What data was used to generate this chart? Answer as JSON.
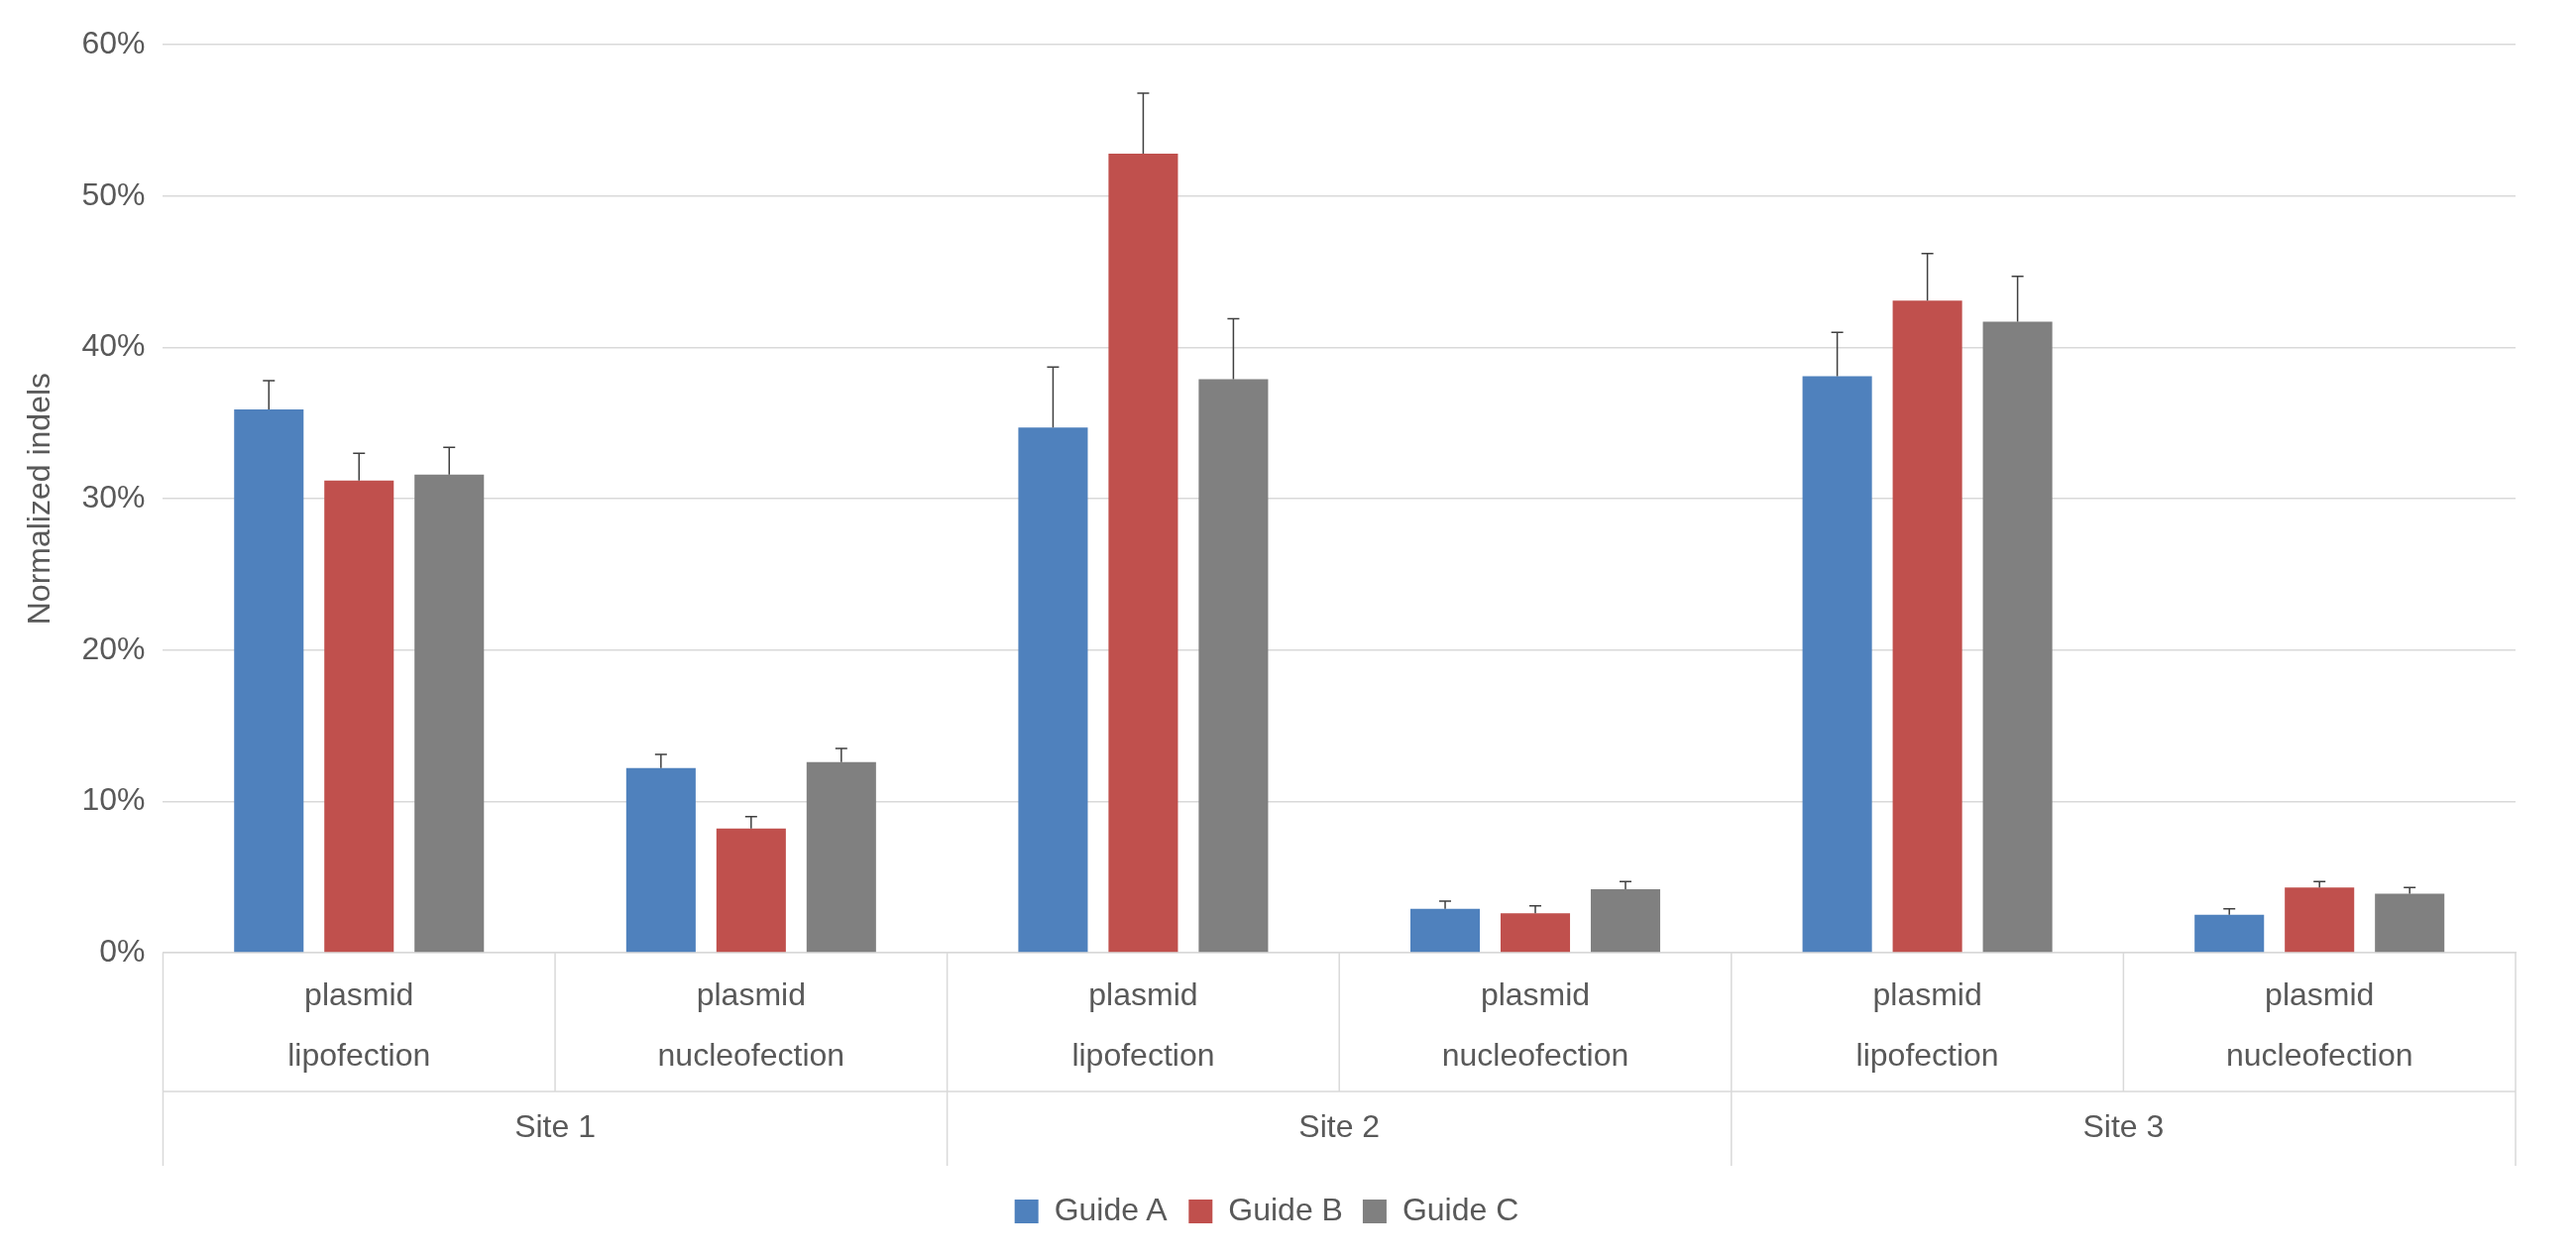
{
  "chart_data": {
    "type": "bar",
    "ylabel": "Normalized indels",
    "categories": [
      "plasmid\nlipofection",
      "plasmid\nnucleofection",
      "plasmid\nlipofection",
      "plasmid\nnucleofection",
      "plasmid\nlipofection",
      "plasmid\nnucleofection"
    ],
    "annotations": [
      "Site 1",
      "Site 2",
      "Site 3"
    ],
    "series": [
      {
        "name": "Guide A",
        "color": "#4f81bd",
        "values": [
          35.9,
          12.2,
          34.7,
          2.9,
          38.1,
          2.5
        ],
        "errors": [
          [
            35.9,
            37.8
          ],
          [
            12.2,
            13.1
          ],
          [
            34.7,
            38.7
          ],
          [
            2.9,
            3.4
          ],
          [
            38.1,
            41.0
          ],
          [
            2.5,
            2.9
          ]
        ]
      },
      {
        "name": "Guide B",
        "color": "#c0504d",
        "values": [
          31.2,
          8.2,
          52.8,
          2.6,
          43.1,
          4.3
        ],
        "errors": [
          [
            31.2,
            33.0
          ],
          [
            8.2,
            9.0
          ],
          [
            52.8,
            56.8
          ],
          [
            2.6,
            3.1
          ],
          [
            43.1,
            46.2
          ],
          [
            4.3,
            4.7
          ]
        ]
      },
      {
        "name": "Guide C",
        "color": "#808080",
        "values": [
          31.6,
          12.6,
          37.9,
          4.2,
          41.7,
          3.9
        ],
        "errors": [
          [
            31.6,
            33.4
          ],
          [
            12.6,
            13.5
          ],
          [
            37.9,
            41.9
          ],
          [
            4.2,
            4.7
          ],
          [
            41.7,
            44.7
          ],
          [
            3.9,
            4.3
          ]
        ]
      }
    ],
    "ylim": [
      0,
      60
    ],
    "yticks": [
      {
        "value": 0,
        "label": "0%"
      },
      {
        "value": 10,
        "label": "10%"
      },
      {
        "value": 20,
        "label": "20%"
      },
      {
        "value": 30,
        "label": "30%"
      },
      {
        "value": 40,
        "label": "40%"
      },
      {
        "value": 50,
        "label": "50%"
      },
      {
        "value": 60,
        "label": "60%"
      }
    ],
    "grid": "y",
    "legend": "bottom"
  }
}
